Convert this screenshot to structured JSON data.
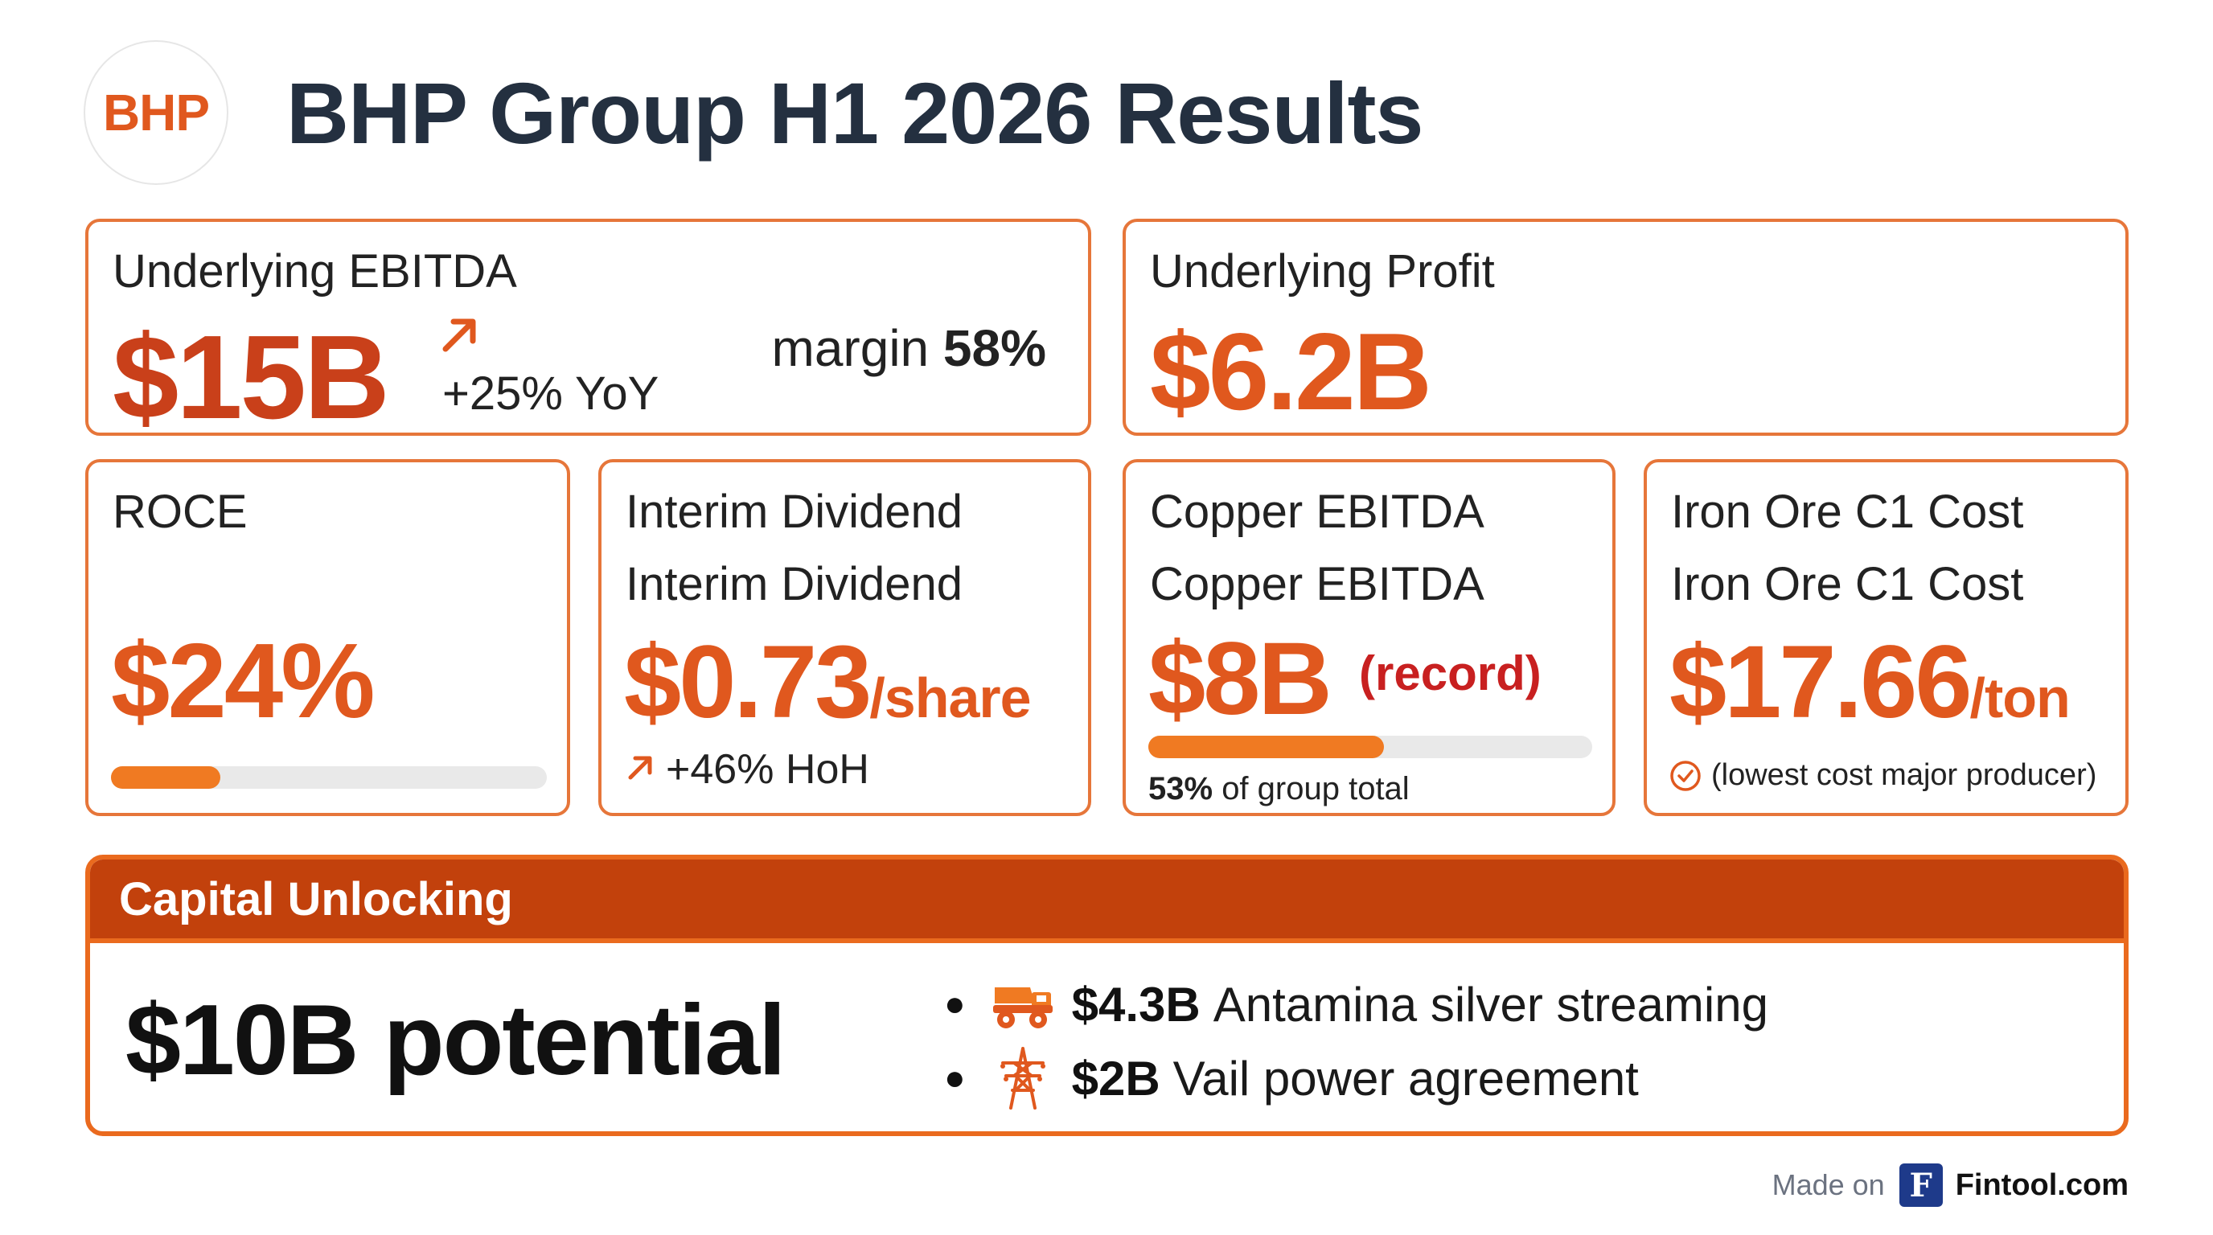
{
  "header": {
    "logo_text": "BHP",
    "title": "BHP Group H1 2026 Results"
  },
  "ebitda": {
    "label": "Underlying EBITDA",
    "value": "$15B",
    "change": "+25% YoY",
    "margin_label": "margin",
    "margin_value": "58%"
  },
  "profit": {
    "label": "Underlying Profit",
    "value": "$6.2B"
  },
  "roce": {
    "label": "ROCE",
    "value": "$24%",
    "bar_fraction": 0.25
  },
  "dividend": {
    "label": "Interim Dividend",
    "label_repeat": "Interim Dividend",
    "value": "$0.73",
    "unit": "/share",
    "change": "+46% HoH"
  },
  "copper": {
    "label": "Copper EBITDA",
    "label_repeat": "Copper EBITDA",
    "value": "$8B",
    "tag": "(record)",
    "bar_fraction": 0.53,
    "share_value": "53%",
    "share_text": "of group total"
  },
  "iron": {
    "label": "Iron Ore C1 Cost",
    "label_repeat": "Iron Ore C1 Cost",
    "value": "$17.66",
    "unit": "/ton",
    "note": "(lowest cost major producer)"
  },
  "capital": {
    "title": "Capital Unlocking",
    "headline": "$10B potential",
    "items": [
      {
        "icon": "mining-truck-icon",
        "amount": "$4.3B",
        "text": "Antamina silver streaming"
      },
      {
        "icon": "power-tower-icon",
        "amount": "$2B",
        "text": "Vail power agreement"
      }
    ]
  },
  "footer": {
    "made_on": "Made on",
    "logo_letter": "F",
    "brand": "Fintool.com"
  },
  "colors": {
    "accent": "#e0581e",
    "bar": "#f07a22",
    "header_band": "#c2410c",
    "record": "#c82020",
    "check": "#e0581e"
  }
}
